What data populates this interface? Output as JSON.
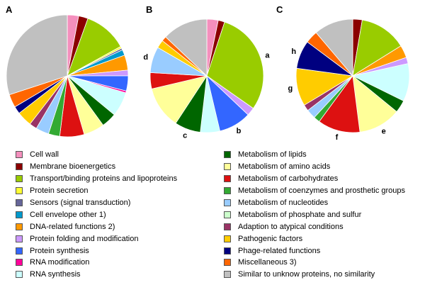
{
  "chart_data": {
    "type": "pie",
    "categories": [
      {
        "name": "Cell wall",
        "color": "#f48fbd"
      },
      {
        "name": "Membrane bioenergetics",
        "color": "#8b0000"
      },
      {
        "name": "Transport/binding proteins and lipoproteins",
        "color": "#99cc00"
      },
      {
        "name": "Protein secretion",
        "color": "#ffff33"
      },
      {
        "name": "Sensors (signal transduction)",
        "color": "#666699"
      },
      {
        "name": "Cell envelope other 1)",
        "color": "#0099cc"
      },
      {
        "name": "DNA-related functions 2)",
        "color": "#ff9900"
      },
      {
        "name": "Protein folding and modification",
        "color": "#cc99ff"
      },
      {
        "name": "Protein synthesis",
        "color": "#3366ff"
      },
      {
        "name": "RNA modification",
        "color": "#ff0099"
      },
      {
        "name": "RNA synthesis",
        "color": "#ccffff"
      },
      {
        "name": "Metabolism of lipids",
        "color": "#006600"
      },
      {
        "name": "Metabolism of amino acids",
        "color": "#ffff99"
      },
      {
        "name": "Metabolism of carbohydrates",
        "color": "#dd1111"
      },
      {
        "name": "Metabolism of coenzymes and prosthetic groups",
        "color": "#33aa33"
      },
      {
        "name": "Metabolism of nucleotides",
        "color": "#99ccff"
      },
      {
        "name": "Metabolism of phosphate and sulfur",
        "color": "#ccffcc"
      },
      {
        "name": "Adaption to atypical conditions",
        "color": "#993366"
      },
      {
        "name": "Pathogenic factors",
        "color": "#ffcc00"
      },
      {
        "name": "Phage-related functions",
        "color": "#000080"
      },
      {
        "name": "Miscellaneous 3)",
        "color": "#ff6600"
      },
      {
        "name": "Similar to unknow proteins, no similarity",
        "color": "#c0c0c0"
      }
    ],
    "legend_columns": [
      11,
      11
    ],
    "charts": [
      {
        "label": "A",
        "values": [
          3.0,
          2.5,
          11.5,
          0.5,
          0.5,
          1.5,
          4.0,
          1.5,
          4.0,
          0.5,
          6.5,
          4.0,
          5.5,
          6.5,
          3.0,
          3.5,
          0,
          2.0,
          4.0,
          2.0,
          3.5,
          30.0
        ],
        "slice_labels": []
      },
      {
        "label": "B",
        "values": [
          3.5,
          2.0,
          32.0,
          0,
          0,
          0,
          0,
          2.5,
          10.0,
          0,
          6.0,
          8.0,
          13.0,
          5.0,
          0,
          8.0,
          0,
          0,
          2.5,
          0,
          1.5,
          14.0
        ],
        "slice_labels": [
          {
            "text": "a",
            "category": "Transport/binding proteins and lipoproteins"
          },
          {
            "text": "b",
            "category": "Protein synthesis"
          },
          {
            "text": "c",
            "category": "Metabolism of lipids"
          },
          {
            "text": "d",
            "category": "Metabolism of nucleotides"
          }
        ]
      },
      {
        "label": "C",
        "values": [
          0,
          3.0,
          15.0,
          0,
          0,
          0,
          4.0,
          2.0,
          0,
          0,
          12.0,
          4.0,
          13.5,
          13.5,
          2.0,
          3.0,
          0,
          2.0,
          12.0,
          9.0,
          4.0,
          12.5
        ],
        "slice_labels": [
          {
            "text": "e",
            "category": "Metabolism of amino acids"
          },
          {
            "text": "f",
            "category": "Metabolism of carbohydrates"
          },
          {
            "text": "g",
            "category": "Pathogenic factors"
          },
          {
            "text": "h",
            "category": "Phage-related functions"
          }
        ]
      }
    ]
  }
}
